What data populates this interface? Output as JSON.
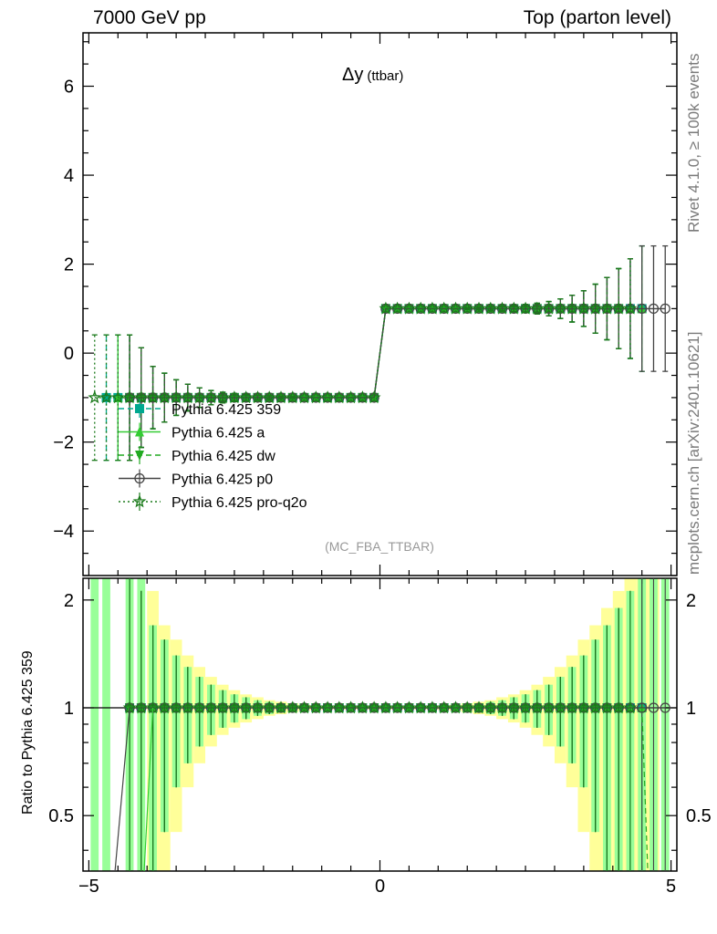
{
  "header": {
    "left": "7000 GeV pp",
    "right": "Top (parton level)"
  },
  "side_labels": {
    "rivet": "Rivet 4.1.0, ≥ 100k events",
    "mcplots": "mcplots.cern.ch [arXiv:2401.10621]"
  },
  "chart_data": [
    {
      "type": "line",
      "title_main": "Δy",
      "title_sub": "(ttbar)",
      "annotation": "(MC_FBA_TTBAR)",
      "xlim": [
        -5.1,
        5.1
      ],
      "ylim": [
        -5.0,
        7.2
      ],
      "x_ticks": [
        -5,
        0,
        5
      ],
      "y_ticks": [
        -4,
        -2,
        0,
        2,
        4,
        6
      ],
      "y_tick_labels": [
        "−4",
        "−2",
        "0",
        "2",
        "4",
        "6"
      ],
      "grid": false,
      "legend_position": "left-middle",
      "bin_centers": [
        -4.9,
        -4.7,
        -4.5,
        -4.3,
        -4.1,
        -3.9,
        -3.7,
        -3.5,
        -3.3,
        -3.1,
        -2.9,
        -2.7,
        -2.5,
        -2.3,
        -2.1,
        -1.9,
        -1.7,
        -1.5,
        -1.3,
        -1.1,
        -0.9,
        -0.7,
        -0.5,
        -0.3,
        -0.1,
        0.1,
        0.3,
        0.5,
        0.7,
        0.9,
        1.1,
        1.3,
        1.5,
        1.7,
        1.9,
        2.1,
        2.3,
        2.5,
        2.7,
        2.9,
        3.1,
        3.3,
        3.5,
        3.7,
        3.9,
        4.1,
        4.3,
        4.5,
        4.7,
        4.9
      ],
      "error_half": [
        1.41,
        1.41,
        1.41,
        1.41,
        1.12,
        0.7,
        0.55,
        0.4,
        0.3,
        0.22,
        0.16,
        0.12,
        0.09,
        0.07,
        0.05,
        0.04,
        0.03,
        0.02,
        0.0,
        0.0,
        0.0,
        0.0,
        0.0,
        0.0,
        0.0,
        0.0,
        0.0,
        0.0,
        0.0,
        0.0,
        0.0,
        0.0,
        0.02,
        0.03,
        0.04,
        0.05,
        0.07,
        0.09,
        0.12,
        0.16,
        0.22,
        0.3,
        0.4,
        0.55,
        0.7,
        0.9,
        1.12,
        1.41,
        1.41,
        1.41
      ],
      "series": [
        {
          "name": "Pythia 6.425 359",
          "color": "#00a88f",
          "marker": "square",
          "line": "dashed",
          "x_min": -4.7,
          "x_max": 4.5
        },
        {
          "name": "Pythia 6.425 a",
          "color": "#33cc33",
          "marker": "triangle-up",
          "line": "solid",
          "x_min": -4.5,
          "x_max": 4.5
        },
        {
          "name": "Pythia 6.425 dw",
          "color": "#22aa22",
          "marker": "triangle-down",
          "line": "dashed",
          "x_min": -4.3,
          "x_max": 4.1
        },
        {
          "name": "Pythia 6.425 p0",
          "color": "#444444",
          "marker": "circle-open",
          "line": "solid",
          "x_min": -4.3,
          "x_max": 4.9
        },
        {
          "name": "Pythia 6.425 pro-q2o",
          "color": "#1a7a1a",
          "marker": "star",
          "line": "dotted",
          "x_min": -4.9,
          "x_max": 4.3
        }
      ],
      "values_note": "Each series equals -1 for Δy < 0 and +1 for Δy > 0"
    },
    {
      "type": "line",
      "ylabel": "Ratio to Pythia 6.425 359",
      "xlim": [
        -5.1,
        5.1
      ],
      "ylim": [
        0.35,
        2.3
      ],
      "y_scale": "log",
      "x_ticks": [
        -5,
        0,
        5
      ],
      "x_tick_labels": [
        "−5",
        "0",
        "5"
      ],
      "y_ticks": [
        0.5,
        1,
        2
      ],
      "y_tick_labels": [
        "0.5",
        "1",
        "2"
      ],
      "reference_line": 1,
      "band_green_half": [
        9,
        9,
        9,
        9,
        1.41,
        0.7,
        0.55,
        0.4,
        0.3,
        0.22,
        0.16,
        0.12,
        0.09,
        0.07,
        0.05,
        0.04,
        0.03,
        0.02,
        0.015,
        0.01,
        0.01,
        0.01,
        0.01,
        0.01,
        0.01,
        0.01,
        0.01,
        0.01,
        0.01,
        0.01,
        0.01,
        0.015,
        0.02,
        0.03,
        0.04,
        0.05,
        0.07,
        0.09,
        0.12,
        0.16,
        0.22,
        0.3,
        0.4,
        0.55,
        0.7,
        0.9,
        1.12,
        1.41,
        9,
        9
      ],
      "band_yellow_half": [
        0,
        0,
        0,
        0,
        0,
        1.12,
        0.7,
        0.55,
        0.4,
        0.3,
        0.22,
        0.16,
        0.12,
        0.09,
        0.07,
        0.05,
        0.04,
        0.03,
        0.02,
        0.015,
        0.01,
        0.01,
        0.01,
        0.01,
        0.01,
        0.01,
        0.01,
        0.01,
        0.01,
        0.01,
        0.015,
        0.02,
        0.03,
        0.04,
        0.05,
        0.07,
        0.09,
        0.12,
        0.16,
        0.22,
        0.3,
        0.4,
        0.55,
        0.7,
        0.9,
        1.12,
        1.41,
        9,
        9,
        0
      ]
    }
  ]
}
